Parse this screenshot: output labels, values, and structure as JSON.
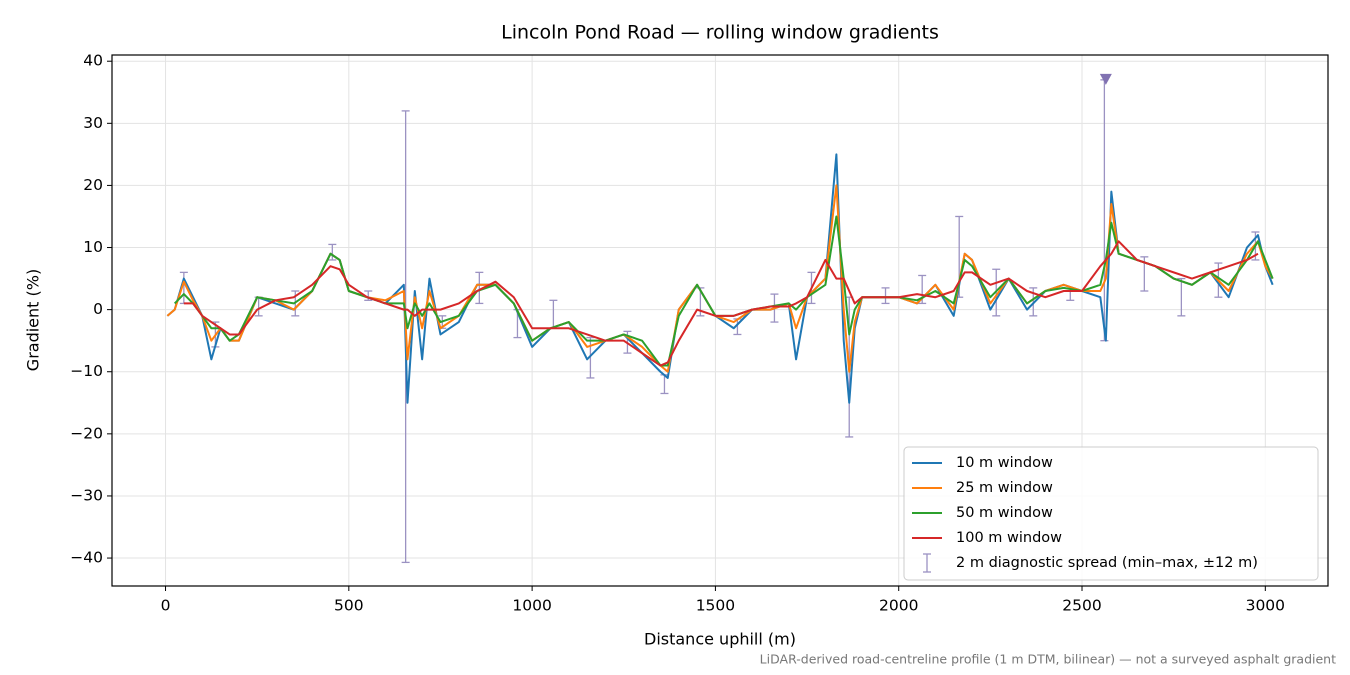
{
  "chart_data": {
    "type": "line",
    "title": "Lincoln Pond Road — rolling window gradients",
    "xlabel": "Distance uphill (m)",
    "ylabel": "Gradient (%)",
    "footnote": "LiDAR-derived road-centreline profile (1 m DTM, bilinear) — not a surveyed asphalt gradient",
    "xlim": [
      -146,
      3171
    ],
    "ylim": [
      -44.5,
      41
    ],
    "xticks": [
      0,
      500,
      1000,
      1500,
      2000,
      2500,
      3000
    ],
    "yticks": [
      {
        "value": -40,
        "label": "−40"
      },
      {
        "value": -30,
        "label": "−30"
      },
      {
        "value": -20,
        "label": "−20"
      },
      {
        "value": -10,
        "label": "−10"
      },
      0,
      10,
      20,
      30,
      40
    ],
    "grid": true,
    "legend": "lower right",
    "x": [
      5,
      25,
      50,
      75,
      100,
      125,
      150,
      175,
      200,
      250,
      300,
      350,
      400,
      450,
      475,
      500,
      550,
      600,
      650,
      660,
      680,
      700,
      720,
      750,
      800,
      850,
      900,
      950,
      1000,
      1050,
      1100,
      1150,
      1200,
      1250,
      1300,
      1350,
      1370,
      1400,
      1450,
      1500,
      1550,
      1600,
      1650,
      1700,
      1720,
      1750,
      1800,
      1830,
      1850,
      1865,
      1880,
      1900,
      1950,
      2000,
      2050,
      2100,
      2150,
      2180,
      2200,
      2250,
      2300,
      2350,
      2400,
      2450,
      2500,
      2550,
      2565,
      2580,
      2600,
      2650,
      2700,
      2750,
      2800,
      2850,
      2900,
      2950,
      2980,
      3000,
      3020
    ],
    "series": [
      {
        "name": "10 m window",
        "color": "#1f77b4",
        "values": [
          -1,
          0,
          5,
          2,
          -1,
          -8,
          -3,
          -5,
          -5,
          2,
          1,
          0,
          3,
          9,
          8,
          3,
          2,
          1,
          4,
          -15,
          3,
          -8,
          5,
          -4,
          -2,
          4,
          4,
          1,
          -6,
          -3,
          -2,
          -8,
          -5,
          -4,
          -7,
          -10,
          -11,
          0,
          4,
          -1,
          -3,
          0,
          0,
          1,
          -8,
          2,
          5,
          25,
          -5,
          -15,
          -3,
          2,
          2,
          2,
          1,
          4,
          -1,
          9,
          8,
          0,
          5,
          0,
          3,
          4,
          3,
          2,
          -5,
          19,
          9,
          8,
          7,
          5,
          4,
          6,
          2,
          10,
          12,
          7,
          4
        ]
      },
      {
        "name": "25 m window",
        "color": "#ff7f0e",
        "values": [
          -1,
          0,
          4.5,
          1.5,
          -1,
          -5,
          -3,
          -5,
          -5,
          2,
          1.5,
          0,
          3,
          9,
          8,
          3,
          2,
          1.5,
          3,
          -8,
          2,
          -3,
          3,
          -3,
          -1,
          4,
          4,
          1,
          -5,
          -3,
          -2,
          -6,
          -5,
          -4,
          -6,
          -9,
          -10,
          0,
          4,
          -1,
          -2,
          0,
          0,
          1,
          -3,
          2,
          5,
          20,
          0,
          -10,
          -2,
          2,
          2,
          2,
          1,
          4,
          0,
          9,
          8,
          1,
          5,
          1,
          3,
          4,
          3,
          3,
          5,
          17,
          9,
          8,
          7,
          5,
          4,
          6,
          3,
          9,
          11,
          7,
          5
        ]
      },
      {
        "name": "50 m window",
        "color": "#2ca02c",
        "values": [
          null,
          1,
          2.5,
          1,
          -1,
          -3,
          -3,
          -5,
          -4,
          2,
          1.5,
          1,
          3,
          9,
          8,
          3,
          2,
          1,
          1,
          -3,
          1,
          -1,
          1,
          -2,
          -1,
          3,
          4,
          1,
          -5,
          -3,
          -2,
          -5,
          -5,
          -4,
          -5,
          -9,
          -9,
          -1,
          4,
          -1,
          -1,
          0,
          0.5,
          1,
          0,
          2,
          4,
          15,
          5,
          -4,
          0,
          2,
          2,
          2,
          1.5,
          3,
          1,
          8,
          7,
          2,
          5,
          1,
          3,
          3.5,
          3,
          4,
          8,
          14,
          9,
          8,
          7,
          5,
          4,
          6,
          4,
          8,
          11,
          8,
          5
        ]
      },
      {
        "name": "100 m window",
        "color": "#d62728",
        "values": [
          null,
          null,
          1,
          1,
          -1,
          -2,
          -3,
          -4,
          -4,
          0,
          1.5,
          2,
          4,
          7,
          6.5,
          4,
          2,
          1,
          0,
          0,
          -1,
          0,
          0,
          0,
          1,
          3,
          4.5,
          2,
          -3,
          -3,
          -3,
          -4,
          -5,
          -5,
          -7,
          -9,
          -8.5,
          -5,
          0,
          -1,
          -1,
          0,
          0.5,
          0.5,
          1,
          2,
          8,
          5,
          5,
          3,
          1,
          2,
          2,
          2,
          2.5,
          2,
          3,
          6,
          6,
          4,
          5,
          3,
          2,
          3,
          3,
          7,
          8,
          9,
          11,
          8,
          7,
          6,
          5,
          6,
          7,
          8,
          9,
          null,
          null
        ]
      }
    ],
    "errorbars": {
      "name": "2 m diagnostic spread (min–max, ±12 m)",
      "color": "#9b92c2",
      "x": [
        50,
        136,
        254,
        354,
        455,
        553,
        655,
        755,
        856,
        960,
        1058,
        1159,
        1260,
        1361,
        1459,
        1560,
        1661,
        1762,
        1865,
        1964,
        2064,
        2165,
        2266,
        2367,
        2468,
        2561,
        2670,
        2771,
        2872,
        2973
      ],
      "low": [
        1,
        -6,
        -1,
        -1,
        8,
        1.5,
        -40.7,
        -3,
        1,
        -4.5,
        -3,
        -11,
        -7,
        -13.5,
        -1,
        -4,
        -2,
        1,
        -20.5,
        1,
        1,
        2,
        -1,
        -1,
        1.5,
        -5,
        3,
        -1,
        2,
        8
      ],
      "high": [
        6,
        -2,
        2,
        3,
        10.5,
        3,
        32,
        -1,
        6,
        0,
        1.5,
        -4.5,
        -3.5,
        -10.5,
        3.5,
        -1.5,
        2.5,
        6,
        2,
        3.5,
        5.5,
        15,
        6.5,
        3.5,
        3,
        37,
        8.5,
        5,
        7.5,
        12.5
      ]
    },
    "clip_marker": {
      "x": 2565,
      "value": 37,
      "color": "#8172b2"
    }
  }
}
